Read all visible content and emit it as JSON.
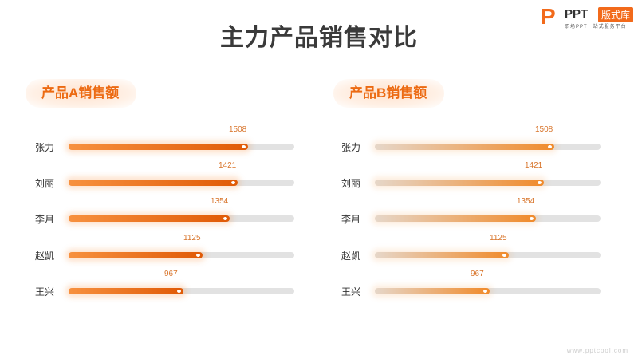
{
  "title": "主力产品销售对比",
  "logo": {
    "mark": "P",
    "name": "PPT",
    "tag": "版式库",
    "slogan": "职场PPT一站式服务平台"
  },
  "watermark": "www.pptcool.com",
  "colors": {
    "accent": "#ec6a12",
    "track": "#e2e2e2"
  },
  "chart_data": [
    {
      "type": "bar",
      "title": "产品A销售额",
      "categories": [
        "张力",
        "刘丽",
        "李月",
        "赵凯",
        "王兴"
      ],
      "values": [
        1508,
        1421,
        1354,
        1125,
        967
      ],
      "xlim": [
        0,
        1900
      ]
    },
    {
      "type": "bar",
      "title": "产品B销售额",
      "categories": [
        "张力",
        "刘丽",
        "李月",
        "赵凯",
        "王兴"
      ],
      "values": [
        1508,
        1421,
        1354,
        1125,
        967
      ],
      "xlim": [
        0,
        1900
      ]
    }
  ]
}
